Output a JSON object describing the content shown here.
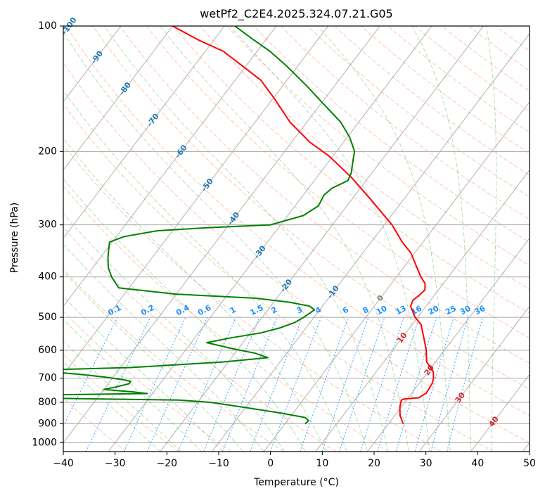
{
  "chart_data": {
    "type": "line",
    "title": "wetPf2_C2E4.2025.324.07.21.G05",
    "xlabel": "Temperature (°C)",
    "ylabel": "Pressure (hPa)",
    "skew_t": true,
    "y_scale": "log",
    "y_inverted": true,
    "xlim": [
      -40,
      50
    ],
    "ylim": [
      1050,
      100
    ],
    "x_ticks": [
      -40,
      -30,
      -20,
      -10,
      0,
      10,
      20,
      30,
      40,
      50
    ],
    "y_ticks": [
      1000,
      900,
      800,
      700,
      600,
      500,
      400,
      300,
      200,
      100
    ],
    "grid": true,
    "series": [
      {
        "name": "",
        "role": "temperature",
        "color": "#ff0000",
        "points": [
          [
            900,
            22.8
          ],
          [
            860,
            21.0
          ],
          [
            820,
            19.7
          ],
          [
            790,
            19.0
          ],
          [
            785,
            19.4
          ],
          [
            780,
            22.0
          ],
          [
            760,
            22.8
          ],
          [
            720,
            22.5
          ],
          [
            700,
            22.0
          ],
          [
            675,
            21.0
          ],
          [
            640,
            18.3
          ],
          [
            600,
            16.5
          ],
          [
            560,
            14.2
          ],
          [
            520,
            11.7
          ],
          [
            500,
            9.5
          ],
          [
            470,
            7.0
          ],
          [
            455,
            6.6
          ],
          [
            445,
            7.0
          ],
          [
            430,
            7.4
          ],
          [
            415,
            6.5
          ],
          [
            400,
            4.7
          ],
          [
            370,
            1.5
          ],
          [
            350,
            -0.8
          ],
          [
            330,
            -4.0
          ],
          [
            300,
            -8.5
          ],
          [
            260,
            -16.5
          ],
          [
            230,
            -23.5
          ],
          [
            205,
            -30.8
          ],
          [
            190,
            -36.5
          ],
          [
            170,
            -43.3
          ],
          [
            150,
            -49.5
          ],
          [
            135,
            -55.0
          ],
          [
            125,
            -60.5
          ],
          [
            115,
            -66.5
          ],
          [
            108,
            -73.0
          ],
          [
            100,
            -80.0
          ]
        ]
      },
      {
        "name": "",
        "role": "dewpoint",
        "color": "#008000",
        "points": [
          [
            900,
            3.9
          ],
          [
            885,
            4.1
          ],
          [
            870,
            3.0
          ],
          [
            850,
            -2.0
          ],
          [
            820,
            -11.0
          ],
          [
            800,
            -17.5
          ],
          [
            790,
            -24.0
          ],
          [
            785,
            -39.0
          ],
          [
            780,
            -55.0
          ],
          [
            775,
            -60.0
          ],
          [
            770,
            -58.0
          ],
          [
            762,
            -31.0
          ],
          [
            755,
            -34.0
          ],
          [
            745,
            -40.0
          ],
          [
            735,
            -38.0
          ],
          [
            722,
            -36.0
          ],
          [
            712,
            -36.0
          ],
          [
            705,
            -38.0
          ],
          [
            695,
            -42.0
          ],
          [
            685,
            -47.0
          ],
          [
            670,
            -57.0
          ],
          [
            660,
            -38.0
          ],
          [
            640,
            -21.0
          ],
          [
            625,
            -13.0
          ],
          [
            610,
            -16.0
          ],
          [
            595,
            -21.0
          ],
          [
            585,
            -24.0
          ],
          [
            575,
            -27.0
          ],
          [
            560,
            -23.0
          ],
          [
            545,
            -18.0
          ],
          [
            530,
            -15.0
          ],
          [
            515,
            -13.0
          ],
          [
            500,
            -12.0
          ],
          [
            480,
            -11.0
          ],
          [
            470,
            -12.5
          ],
          [
            460,
            -17.0
          ],
          [
            450,
            -24.0
          ],
          [
            440,
            -40.0
          ],
          [
            425,
            -52.0
          ],
          [
            400,
            -55.0
          ],
          [
            380,
            -57.0
          ],
          [
            360,
            -58.5
          ],
          [
            345,
            -59.5
          ],
          [
            330,
            -60.5
          ],
          [
            320,
            -58.5
          ],
          [
            310,
            -53.0
          ],
          [
            305,
            -44.0
          ],
          [
            300,
            -32.0
          ],
          [
            285,
            -27.0
          ],
          [
            270,
            -25.5
          ],
          [
            255,
            -26.0
          ],
          [
            245,
            -25.5
          ],
          [
            235,
            -23.5
          ],
          [
            225,
            -24.0
          ],
          [
            210,
            -25.5
          ],
          [
            200,
            -26.5
          ],
          [
            185,
            -29.5
          ],
          [
            170,
            -33.5
          ],
          [
            155,
            -39.0
          ],
          [
            140,
            -45.0
          ],
          [
            125,
            -52.0
          ],
          [
            115,
            -57.5
          ],
          [
            107,
            -63.0
          ],
          [
            100,
            -68.0
          ]
        ]
      }
    ],
    "isotherm_labels": [
      "-100",
      "-90",
      "-80",
      "-70",
      "-60",
      "-50",
      "-40",
      "-30",
      "-20",
      "-10",
      "0",
      "10",
      "20",
      "30",
      "40"
    ],
    "mixing_ratio_labels": [
      "0.1",
      "0.2",
      "0.4",
      "0.6",
      "1",
      "1.5",
      "2",
      "3",
      "4",
      "6",
      "8",
      "10",
      "13",
      "16",
      "20",
      "25",
      "30",
      "36"
    ],
    "colors": {
      "temperature": "#ff0000",
      "dewpoint": "#008000",
      "isotherm_label_cold": "#1f77b4",
      "isotherm_label_zero": "#7f7f7f",
      "isotherm_label_warm": "#d62728",
      "mixing_ratio": "#1e90ff",
      "dry_adiabat": "#ff7f50",
      "moist_adiabat": "#2ca02c",
      "skew_grid": "#a9a9a9",
      "pressure_grid": "#a9a9a9"
    }
  }
}
